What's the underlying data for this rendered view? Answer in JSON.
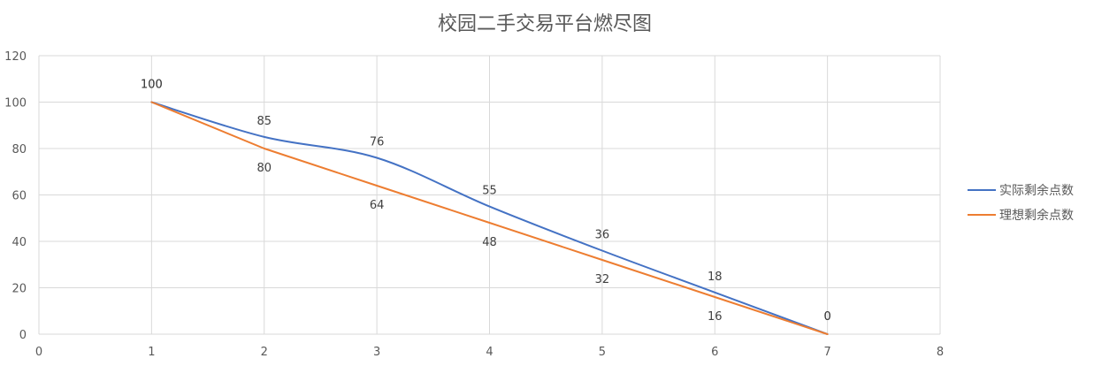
{
  "chart_data": {
    "type": "line",
    "title": "校园二手交易平台燃尽图",
    "xlabel": "",
    "ylabel": "",
    "xlim": [
      0,
      8
    ],
    "ylim": [
      0,
      120
    ],
    "x_ticks": [
      0,
      1,
      2,
      3,
      4,
      5,
      6,
      7,
      8
    ],
    "y_ticks": [
      0,
      20,
      40,
      60,
      80,
      100,
      120
    ],
    "grid": true,
    "legend_position": "right",
    "series": [
      {
        "name": "实际剩余点数",
        "color": "#4472C4",
        "smooth": true,
        "x": [
          1,
          2,
          3,
          4,
          5,
          6,
          7
        ],
        "y": [
          100,
          85,
          76,
          55,
          36,
          18,
          0
        ]
      },
      {
        "name": "理想剩余点数",
        "color": "#ED7D31",
        "smooth": false,
        "x": [
          1,
          2,
          3,
          4,
          5,
          6,
          7
        ],
        "y": [
          100,
          80,
          64,
          48,
          32,
          16,
          0
        ]
      }
    ]
  }
}
